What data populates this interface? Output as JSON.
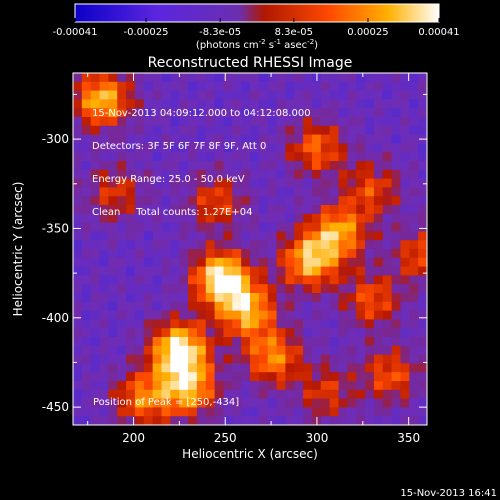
{
  "chart_data": {
    "type": "heatmap",
    "title": "Reconstructed RHESSI Image",
    "xlabel": "Heliocentric X (arcsec)",
    "ylabel": "Heliocentric Y (arcsec)",
    "xlim": [
      167,
      360
    ],
    "ylim": [
      -460,
      -263
    ],
    "x_ticks": [
      200,
      250,
      300,
      350
    ],
    "y_ticks": [
      -300,
      -350,
      -400,
      -450
    ],
    "colorbar": {
      "ticks": [
        "-0.00041",
        "-0.00025",
        "-8.3e-05",
        "8.3e-05",
        "0.00025",
        "0.00041"
      ],
      "tick_values": [
        -0.00041,
        -0.00025,
        -8.3e-05,
        8.3e-05,
        0.00025,
        0.00041
      ],
      "range": [
        -0.00041,
        0.00041
      ],
      "unit_base": "(photons cm",
      "unit_exp1": "-2",
      "unit_mid": " s",
      "unit_exp2": "-1",
      "unit_mid2": " asec",
      "unit_exp3": "-2",
      "unit_end": ")",
      "colors": [
        "#0b00c8",
        "#6a20d8",
        "#7a2bb8",
        "#c81a00",
        "#ff8c00",
        "#ffffff"
      ]
    },
    "sources": [
      {
        "x": 248,
        "y": -378,
        "level": 1.0
      },
      {
        "x": 225,
        "y": -418,
        "level": 1.0
      },
      {
        "x": 262,
        "y": -396,
        "level": 0.75
      },
      {
        "x": 296,
        "y": -368,
        "level": 0.8
      },
      {
        "x": 312,
        "y": -352,
        "level": 0.7
      },
      {
        "x": 276,
        "y": -422,
        "level": 0.65
      },
      {
        "x": 230,
        "y": -440,
        "level": 0.75
      },
      {
        "x": 330,
        "y": -390,
        "level": 0.5
      },
      {
        "x": 205,
        "y": -445,
        "level": 0.6
      },
      {
        "x": 183,
        "y": -278,
        "level": 0.8
      },
      {
        "x": 245,
        "y": -335,
        "level": 0.45
      },
      {
        "x": 300,
        "y": -305,
        "level": 0.55
      },
      {
        "x": 330,
        "y": -328,
        "level": 0.45
      },
      {
        "x": 340,
        "y": -432,
        "level": 0.5
      },
      {
        "x": 305,
        "y": -442,
        "level": 0.4
      },
      {
        "x": 358,
        "y": -365,
        "level": 0.5
      },
      {
        "x": 190,
        "y": -330,
        "level": 0.4
      }
    ],
    "annotations": {
      "line1": "15-Nov-2013 04:09:12.000 to 04:12:08.000",
      "line2": "Detectors: 3F 5F 6F 7F 8F 9F, Att 0",
      "line3": "Energy Range: 25.0 - 50.0 keV",
      "line4": "Clean     Total counts: 1.27E+04",
      "peak": "Position of Peak = [250,-434]"
    }
  },
  "timestamp": "15-Nov-2013 16:41"
}
